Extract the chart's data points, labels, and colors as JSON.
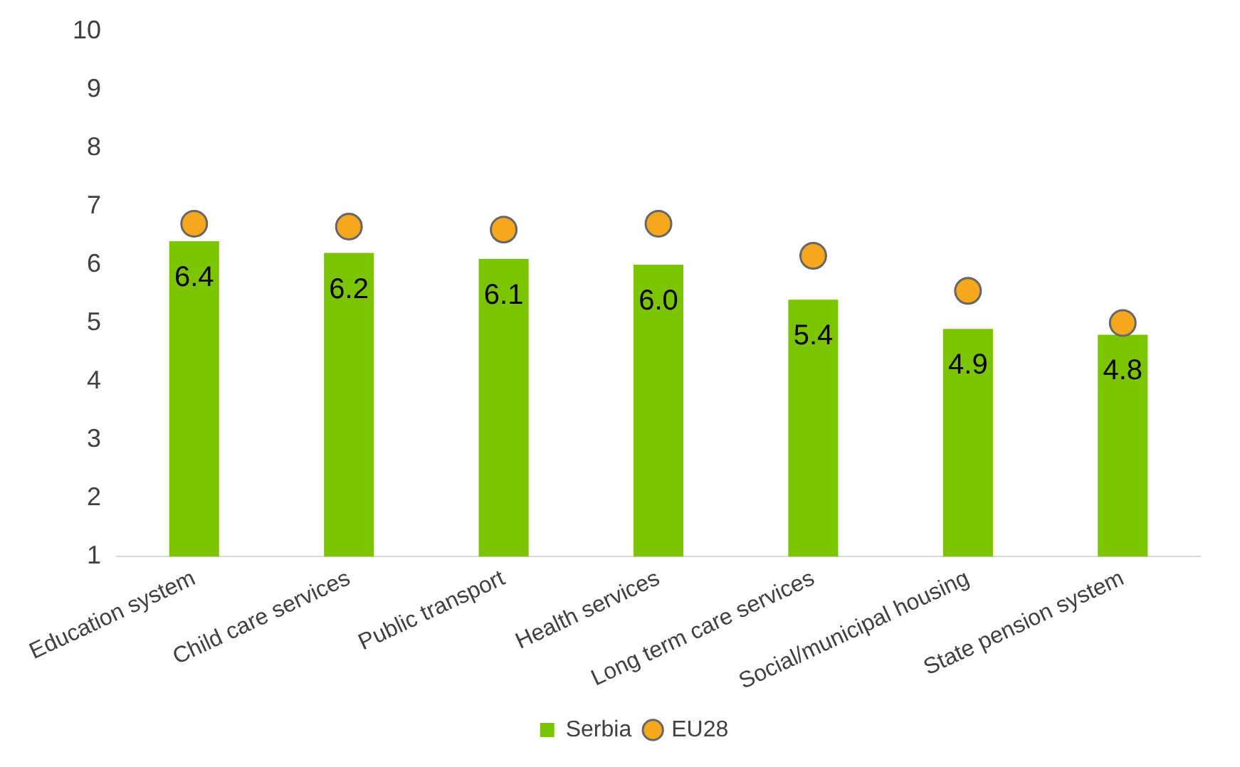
{
  "chart_data": {
    "type": "bar",
    "categories": [
      "Education system",
      "Child care services",
      "Public transport",
      "Health services",
      "Long term care services",
      "Social/municipal housing",
      "State pension system"
    ],
    "series": [
      {
        "name": "Serbia",
        "color": "#7dc400",
        "values": [
          6.4,
          6.2,
          6.1,
          6.0,
          5.4,
          4.9,
          4.8
        ],
        "value_labels": [
          "6.4",
          "6.2",
          "6.1",
          "6.0",
          "5.4",
          "4.9",
          "4.8"
        ]
      },
      {
        "name": "EU28",
        "type": "scatter",
        "color": "#f5a81c",
        "marker": "circle",
        "values": [
          6.7,
          6.65,
          6.6,
          6.7,
          6.15,
          5.55,
          5.0
        ]
      }
    ],
    "ylim": [
      1,
      10
    ],
    "yticks": [
      1,
      2,
      3,
      4,
      5,
      6,
      7,
      8,
      9,
      10
    ],
    "grid": false,
    "legend": "bottom"
  }
}
